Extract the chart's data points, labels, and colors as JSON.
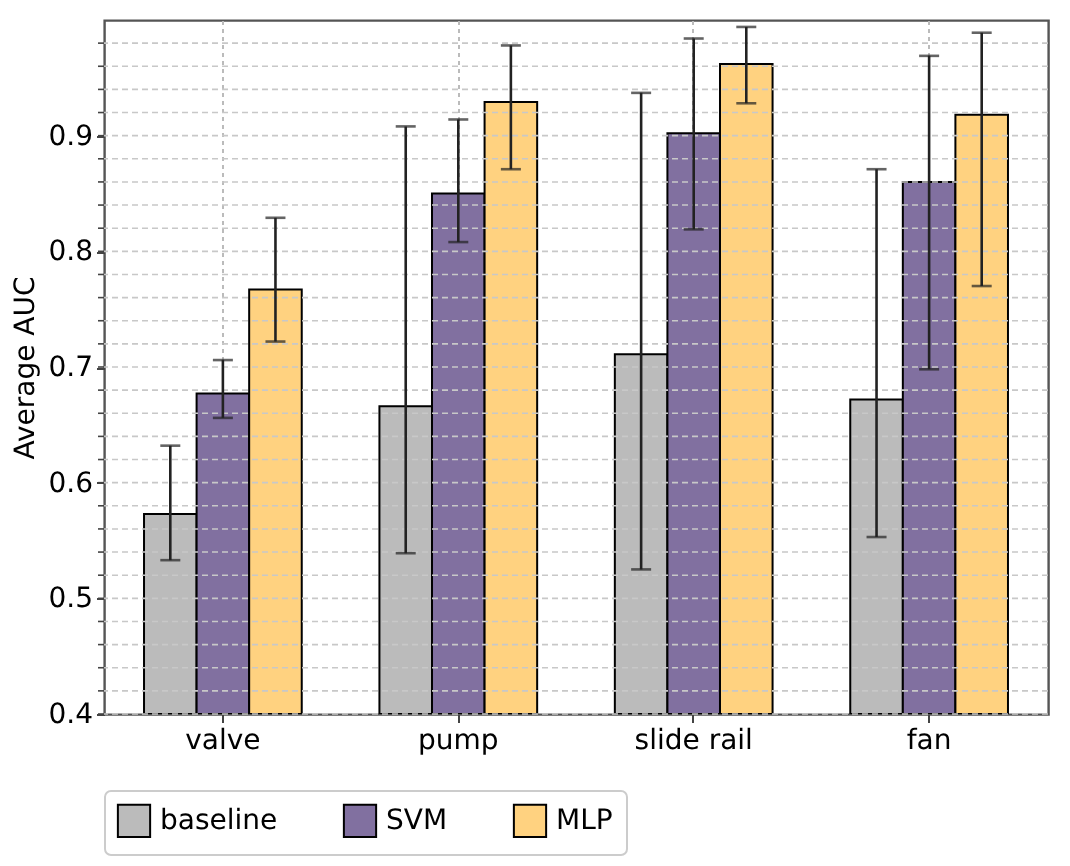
{
  "chart_data": {
    "type": "bar",
    "ylabel": "Average AUC",
    "categories": [
      "valve",
      "pump",
      "slide rail",
      "fan"
    ],
    "series": [
      {
        "name": "baseline",
        "color": "#bbbbbb",
        "values": [
          0.573,
          0.666,
          0.711,
          0.672
        ],
        "errors": [
          [
            0.533,
            0.632
          ],
          [
            0.539,
            0.908
          ],
          [
            0.525,
            0.937
          ],
          [
            0.553,
            0.871
          ]
        ]
      },
      {
        "name": "SVM",
        "color": "#8170a0",
        "values": [
          0.677,
          0.85,
          0.902,
          0.86
        ],
        "errors": [
          [
            0.656,
            0.706
          ],
          [
            0.808,
            0.914
          ],
          [
            0.819,
            0.984
          ],
          [
            0.698,
            0.969
          ]
        ]
      },
      {
        "name": "MLP",
        "color": "#ffd280",
        "values": [
          0.767,
          0.929,
          0.962,
          0.918
        ],
        "errors": [
          [
            0.722,
            0.829
          ],
          [
            0.871,
            0.978
          ],
          [
            0.928,
            0.994
          ],
          [
            0.77,
            0.989
          ]
        ]
      }
    ],
    "ylim": [
      0.4,
      1.0
    ],
    "yticks": [
      0.4,
      {
        "value": 0.42,
        "label": null
      },
      {
        "value": 0.44,
        "label": null
      },
      {
        "value": 0.46,
        "label": null
      },
      {
        "value": 0.48,
        "label": null
      },
      0.5,
      {
        "value": 0.52,
        "label": null
      },
      {
        "value": 0.54,
        "label": null
      },
      {
        "value": 0.56,
        "label": null
      },
      {
        "value": 0.58,
        "label": null
      },
      0.6,
      {
        "value": 0.62,
        "label": null
      },
      {
        "value": 0.64,
        "label": null
      },
      {
        "value": 0.66,
        "label": null
      },
      {
        "value": 0.68,
        "label": null
      },
      0.7,
      {
        "value": 0.72,
        "label": null
      },
      {
        "value": 0.74,
        "label": null
      },
      {
        "value": 0.76,
        "label": null
      },
      {
        "value": 0.78,
        "label": null
      },
      0.8,
      {
        "value": 0.82,
        "label": null
      },
      {
        "value": 0.84,
        "label": null
      },
      {
        "value": 0.86,
        "label": null
      },
      {
        "value": 0.88,
        "label": null
      },
      0.9,
      {
        "value": 0.92,
        "label": null
      },
      {
        "value": 0.94,
        "label": null
      },
      {
        "value": 0.96,
        "label": null
      },
      {
        "value": 0.98,
        "label": null
      }
    ],
    "grid": true,
    "legend": "bottom"
  }
}
